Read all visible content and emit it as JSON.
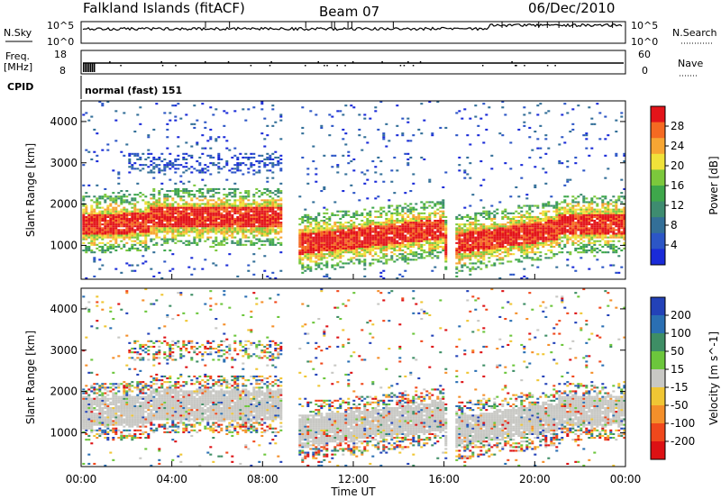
{
  "header": {
    "station": "Falkland Islands (fitACF)",
    "beam": "Beam 07",
    "date": "06/Dec/2010"
  },
  "aux_panels": {
    "nsky": {
      "label": "N.Sky",
      "ticks": [
        "10^5",
        "10^0"
      ]
    },
    "nsearch": {
      "label": "N.Search",
      "ticks": [
        "10^5",
        "10^0"
      ]
    },
    "freq": {
      "label_line1": "Freq.",
      "label_line2": "[MHz]",
      "ticks": [
        "18",
        "8"
      ]
    },
    "nave": {
      "label": "Nave",
      "ticks": [
        "60",
        "0"
      ]
    },
    "cpid": {
      "label": "CPID",
      "value": "normal (fast) 151"
    }
  },
  "chart_data": [
    {
      "type": "heatmap",
      "panel": "power",
      "xlabel": "Time UT",
      "ylabel": "Slant Range [km]",
      "x_ticks": [
        "00:00",
        "04:00",
        "08:00",
        "12:00",
        "16:00",
        "20:00",
        "00:00"
      ],
      "x_range_hours": [
        0,
        24
      ],
      "y_ticks": [
        1000,
        2000,
        3000,
        4000
      ],
      "y_range_km": [
        180,
        4500
      ],
      "data_gaps_hours": [
        [
          8.85,
          9.5
        ],
        [
          16.05,
          16.4
        ]
      ],
      "colorbar": {
        "label": "Power [dB]",
        "ticks": [
          4,
          8,
          12,
          16,
          20,
          24,
          28
        ],
        "colors": [
          "#1a2bd8",
          "#2c56c6",
          "#336f98",
          "#3e8c70",
          "#3ea74b",
          "#7cc83c",
          "#f0e23a",
          "#f7a633",
          "#f56a22",
          "#e3141a"
        ]
      }
    },
    {
      "type": "heatmap",
      "panel": "velocity",
      "xlabel": "Time UT",
      "ylabel": "Slant Range [km]",
      "x_ticks": [
        "00:00",
        "04:00",
        "08:00",
        "12:00",
        "16:00",
        "20:00",
        "00:00"
      ],
      "x_range_hours": [
        0,
        24
      ],
      "y_ticks": [
        1000,
        2000,
        3000,
        4000
      ],
      "y_range_km": [
        180,
        4500
      ],
      "data_gaps_hours": [
        [
          8.85,
          9.5
        ],
        [
          16.05,
          16.4
        ]
      ],
      "colorbar": {
        "label": "Velocity [m s^-1]",
        "ticks": [
          200,
          100,
          50,
          15,
          -15,
          -50,
          -100,
          -200
        ],
        "colors": [
          "#2342b8",
          "#2a6fb3",
          "#3e8e65",
          "#6cc63c",
          "#c8c8c4",
          "#f0c634",
          "#f48f2a",
          "#f0481c",
          "#dd1114"
        ]
      }
    }
  ]
}
